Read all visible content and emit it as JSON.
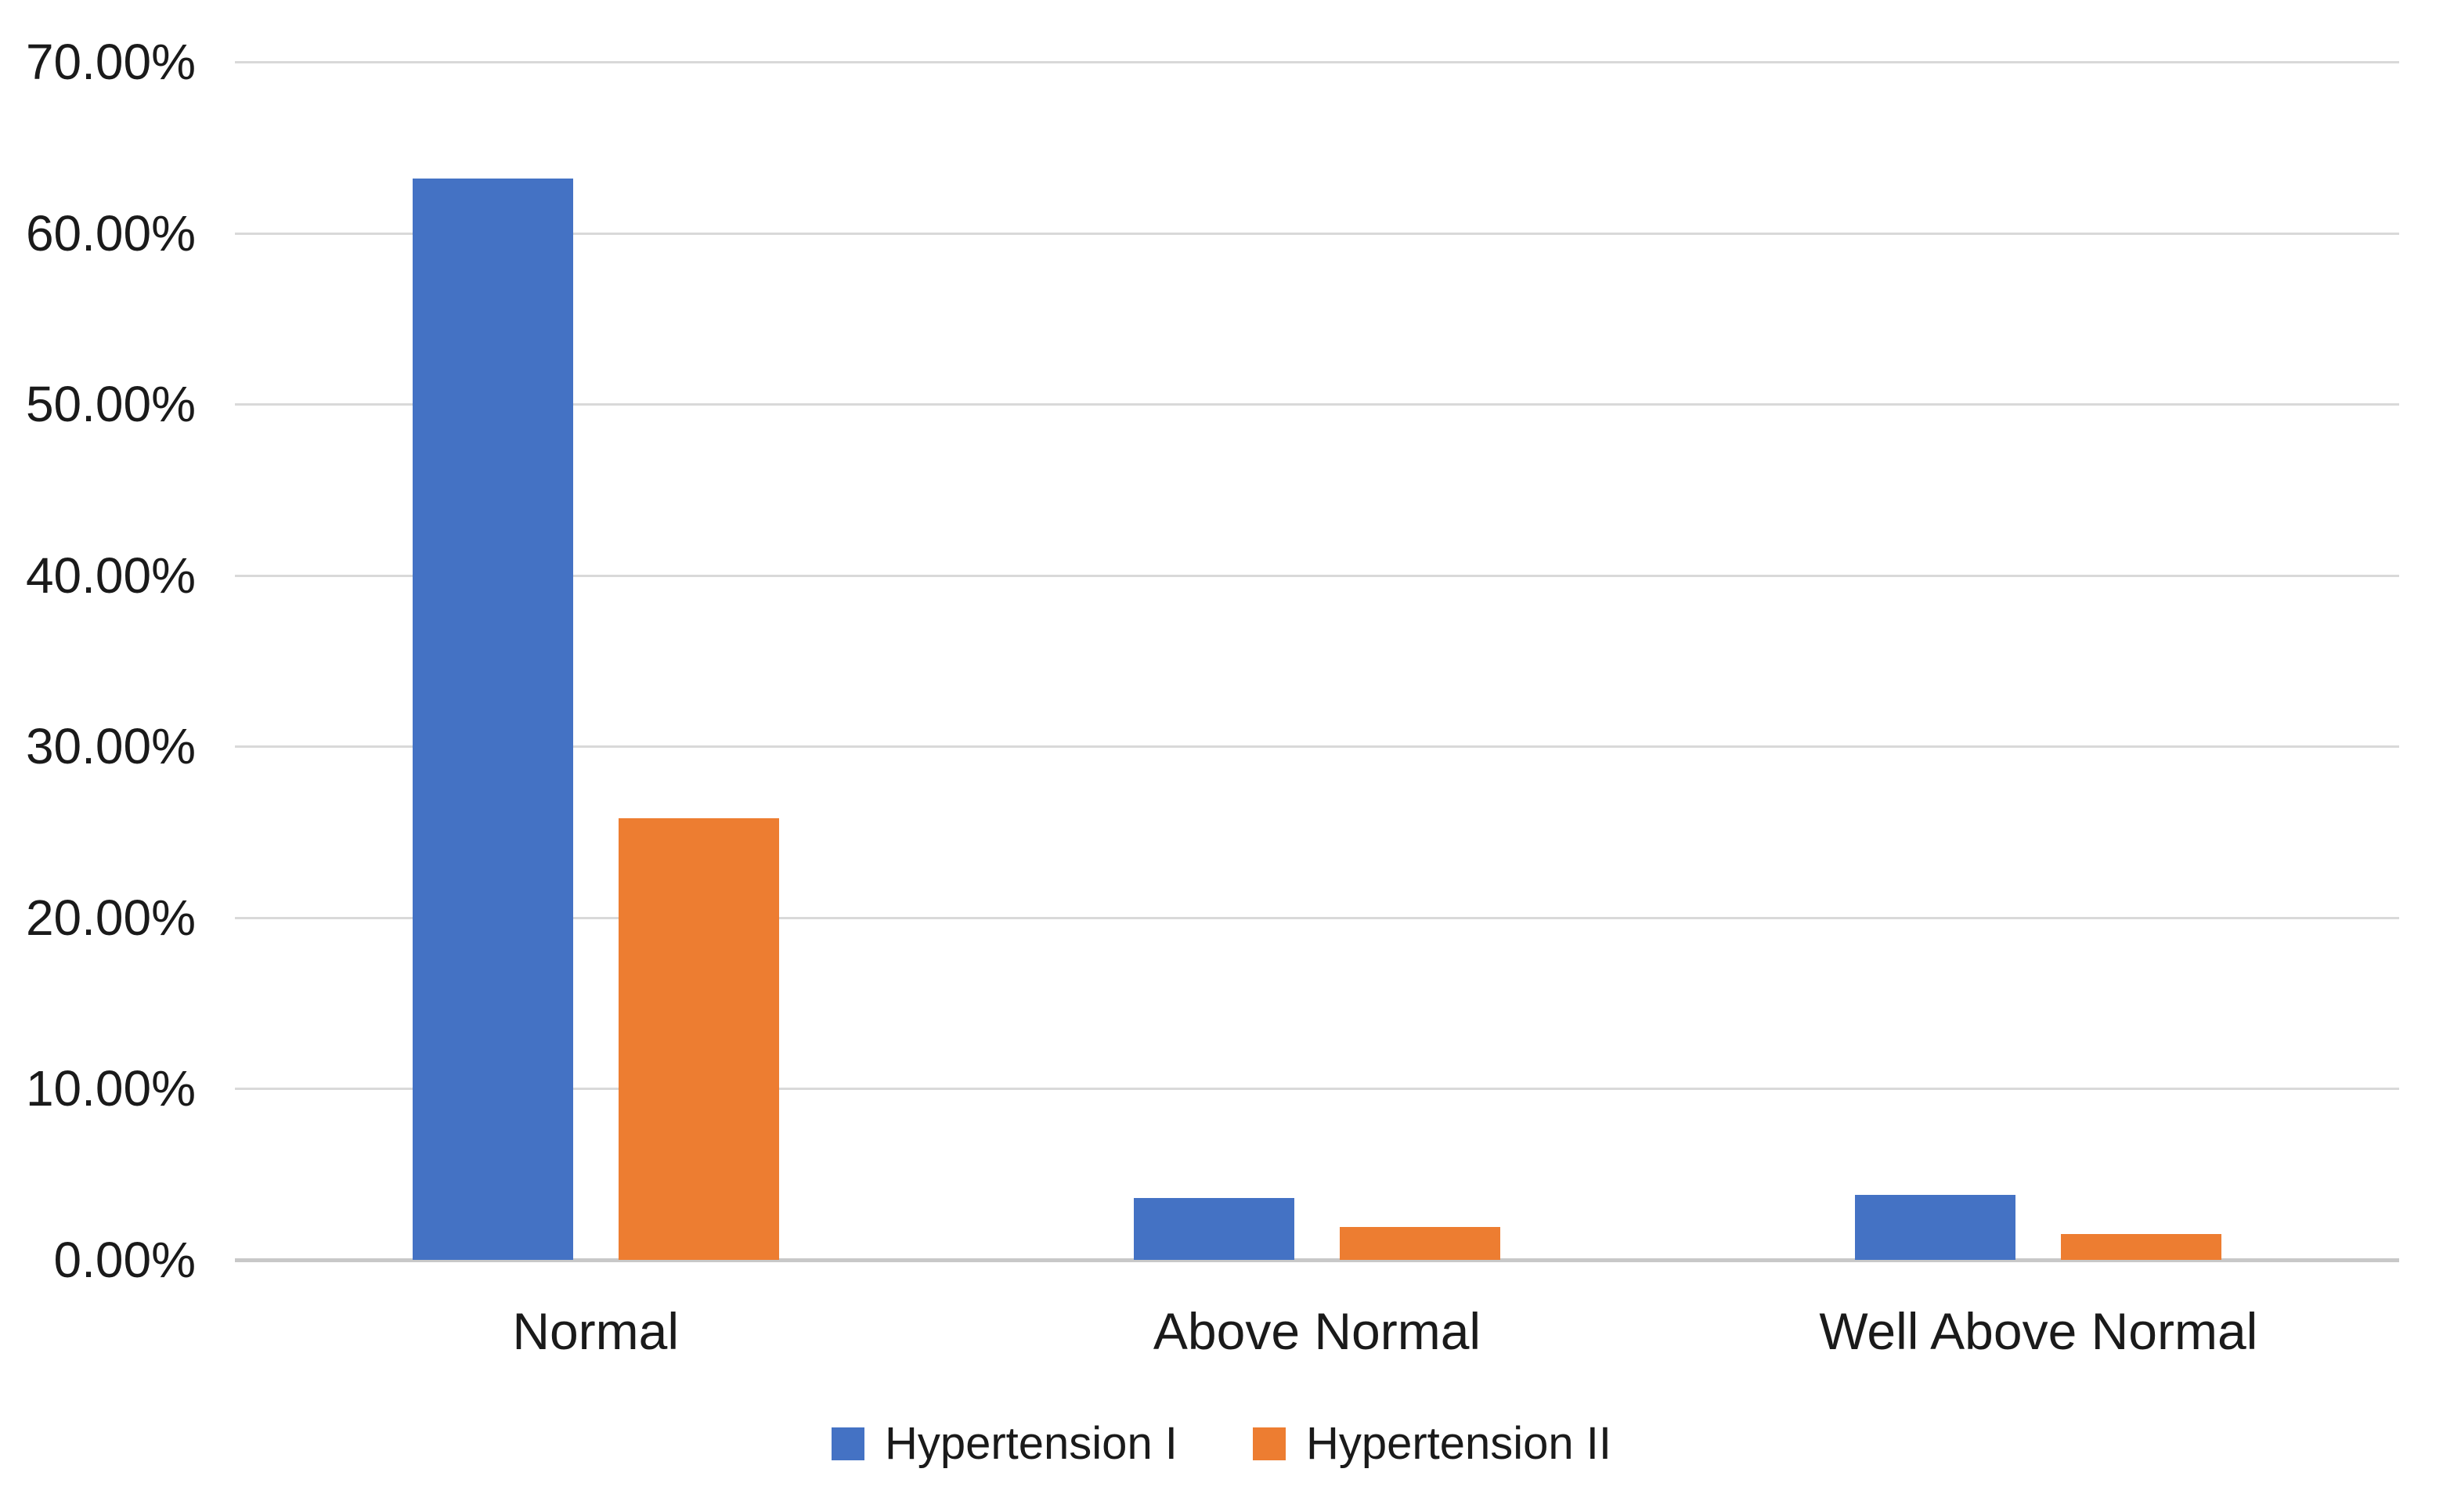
{
  "chart_data": {
    "type": "bar",
    "title": "",
    "xlabel": "",
    "ylabel": "",
    "categories": [
      "Normal",
      "Above Normal",
      "Well Above Normal"
    ],
    "series": [
      {
        "name": "Hypertension I",
        "color": "#4472C4",
        "values": [
          63.2,
          3.6,
          3.8
        ]
      },
      {
        "name": "Hypertension II",
        "color": "#ED7D31",
        "values": [
          25.8,
          1.9,
          1.5
        ]
      }
    ],
    "ylim": [
      0,
      70
    ],
    "y_tick_values": [
      0,
      10,
      20,
      30,
      40,
      50,
      60,
      70
    ],
    "y_tick_labels": [
      "0.00%",
      "10.00%",
      "20.00%",
      "30.00%",
      "40.00%",
      "50.00%",
      "60.00%",
      "70.00%"
    ],
    "grid": true,
    "legend_position": "bottom"
  },
  "colors": {
    "background": "#FFFFFF",
    "gridline": "#D9D9D9",
    "axis_line": "#C8C8C8",
    "text": "#1A1A1A"
  }
}
